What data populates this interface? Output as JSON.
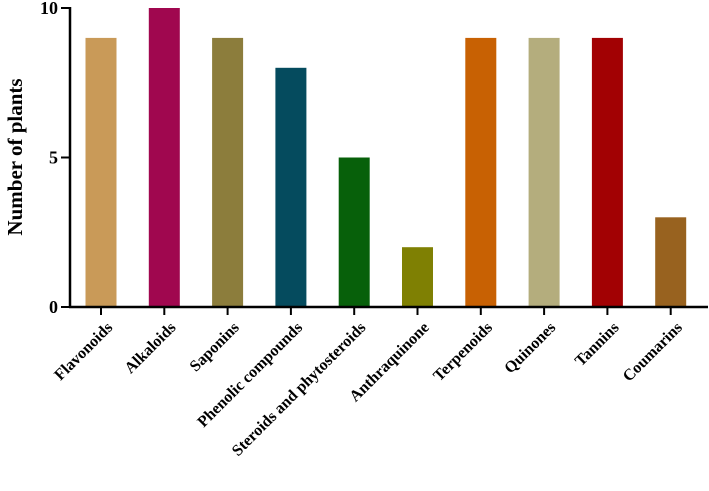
{
  "chart_data": {
    "type": "bar",
    "title": "",
    "xlabel": "",
    "ylabel": "Number of plants",
    "ylim": [
      0,
      10
    ],
    "yticks": [
      0,
      5,
      10
    ],
    "grid": false,
    "legend": "none",
    "categories": [
      "Flavonoids",
      "Alkaloids",
      "Saponins",
      "Phenolic compounds",
      "Steroids and phytosteroids",
      "Anthraquinone",
      "Terpenoids",
      "Quinones",
      "Tannins",
      "Coumarins"
    ],
    "values": [
      9,
      10,
      9,
      8,
      5,
      2,
      9,
      9,
      9,
      3
    ],
    "colors": [
      "#C99A58",
      "#A0074F",
      "#8C7D3C",
      "#054B5E",
      "#07600A",
      "#7F8003",
      "#C86103",
      "#B4AD7D",
      "#A20103",
      "#98621F"
    ]
  }
}
